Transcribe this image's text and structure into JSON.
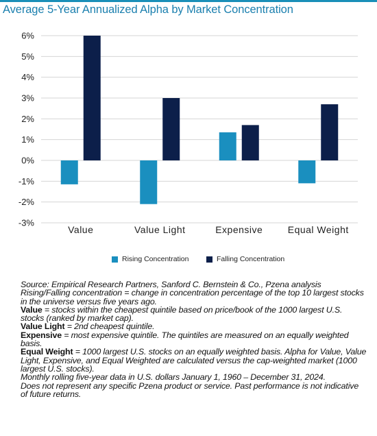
{
  "subtitle": "Average 5-Year Annualized Alpha by Market Concentration",
  "colors": {
    "rising": "#1a8fbf",
    "falling": "#0c1f4a",
    "accent": "#1a7fae",
    "grid": "#d4d4d4"
  },
  "chart_data": {
    "type": "bar",
    "categories": [
      "Value",
      "Value Light",
      "Expensive",
      "Equal Weight"
    ],
    "series": [
      {
        "name": "Rising Concentration",
        "values": [
          -1.15,
          -2.1,
          1.35,
          -1.1
        ]
      },
      {
        "name": "Falling Concentration",
        "values": [
          6.0,
          3.0,
          1.7,
          2.7
        ]
      }
    ],
    "ylim": [
      -3,
      6
    ],
    "yticks": [
      6,
      5,
      4,
      3,
      2,
      1,
      0,
      -1,
      -2,
      -3
    ],
    "ytick_labels": [
      "6%",
      "5%",
      "4%",
      "3%",
      "2%",
      "1%",
      "0%",
      "-1%",
      "-2%",
      "-3%"
    ],
    "grid": true,
    "legend": "bottom-center"
  },
  "notes": {
    "source": "Source: Empirical Research Partners, Sanford C. Bernstein & Co., Pzena analysis",
    "concentration_def": "Rising/Falling concentration = change in concentration percentage of the top 10 largest stocks in the universe versus five years ago.",
    "value_term": "Value",
    "value_def": " = stocks within the cheapest quintile based on price/book of the 1000 largest U.S. stocks (ranked by market cap).",
    "value_light_term": "Value Light",
    "value_light_def": " = 2nd cheapest quintile.",
    "expensive_term": "Expensive",
    "expensive_def": " = most expensive quintile. The quintiles are measured on an equally weighted basis.",
    "equal_weight_term": "Equal Weight",
    "equal_weight_def": " = 1000 largest U.S. stocks on an equally weighted basis. Alpha for Value, Value Light, Expensive, and Equal Weighted are calculated versus the cap-weighted market (1000 largest U.S. stocks).",
    "data_period": "Monthly rolling five-year data in U.S. dollars January 1, 1960 – December 31, 2024.",
    "disclaimer": "Does not represent any specific Pzena product or service. Past performance is not indicative of future returns."
  }
}
